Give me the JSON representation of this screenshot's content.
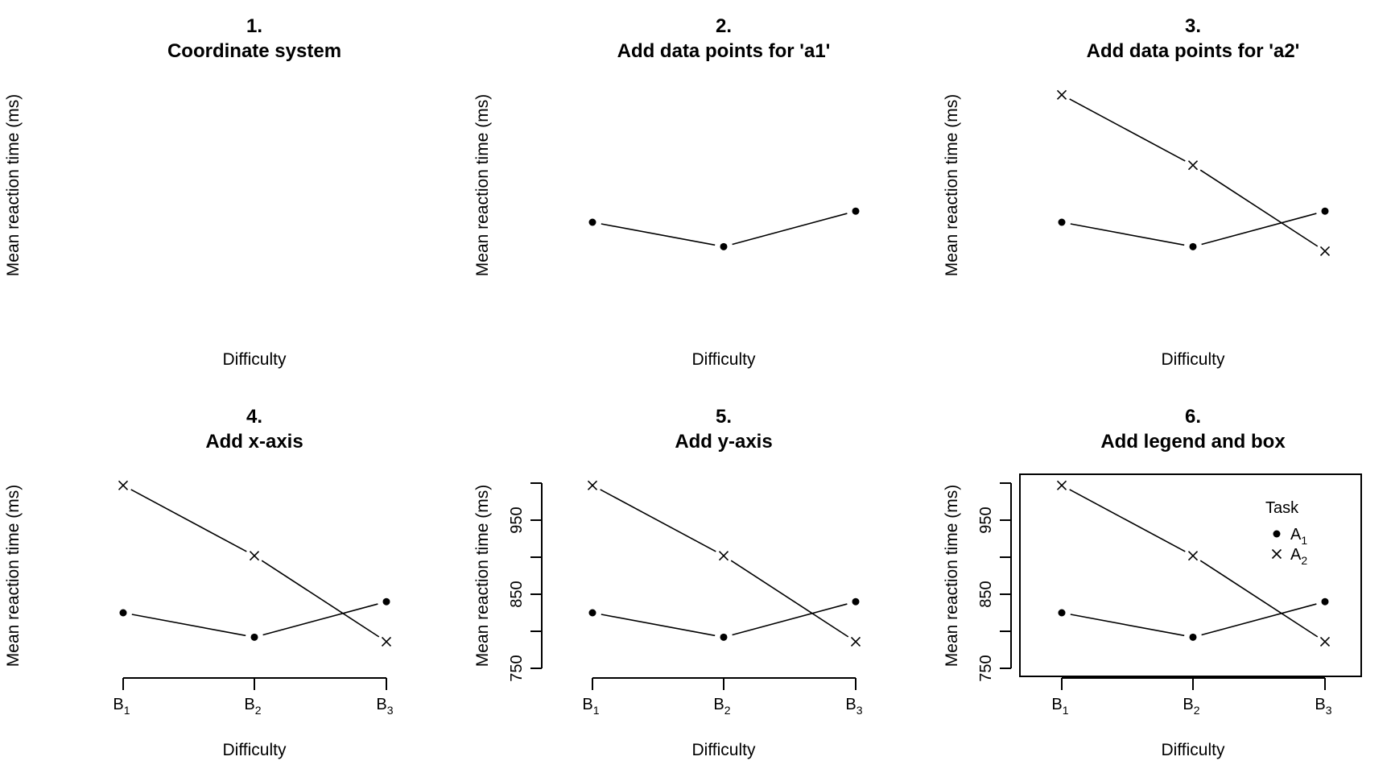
{
  "figure": {
    "panels": [
      {
        "number": "1.",
        "title": "Coordinate system",
        "show_a1": false,
        "show_a2": false,
        "show_xaxis": false,
        "show_yaxis": false,
        "show_legend": false,
        "show_box": false
      },
      {
        "number": "2.",
        "title": "Add data points for 'a1'",
        "show_a1": true,
        "show_a2": false,
        "show_xaxis": false,
        "show_yaxis": false,
        "show_legend": false,
        "show_box": false
      },
      {
        "number": "3.",
        "title": "Add data points for 'a2'",
        "show_a1": true,
        "show_a2": true,
        "show_xaxis": false,
        "show_yaxis": false,
        "show_legend": false,
        "show_box": false
      },
      {
        "number": "4.",
        "title": "Add x-axis",
        "show_a1": true,
        "show_a2": true,
        "show_xaxis": true,
        "show_yaxis": false,
        "show_legend": false,
        "show_box": false
      },
      {
        "number": "5.",
        "title": "Add y-axis",
        "show_a1": true,
        "show_a2": true,
        "show_xaxis": true,
        "show_yaxis": true,
        "show_legend": false,
        "show_box": false
      },
      {
        "number": "6.",
        "title": "Add legend and box",
        "show_a1": true,
        "show_a2": true,
        "show_xaxis": true,
        "show_yaxis": true,
        "show_legend": true,
        "show_box": true
      }
    ]
  },
  "chart_data": {
    "type": "line",
    "xlabel": "Difficulty",
    "ylabel": "Mean reaction time (ms)",
    "categories": [
      {
        "base": "B",
        "sub": "1"
      },
      {
        "base": "B",
        "sub": "2"
      },
      {
        "base": "B",
        "sub": "3"
      }
    ],
    "series": [
      {
        "name": "a1",
        "legend_base": "A",
        "legend_sub": "1",
        "marker": "filled-circle",
        "values": [
          825,
          792,
          840
        ]
      },
      {
        "name": "a2",
        "legend_base": "A",
        "legend_sub": "2",
        "marker": "cross",
        "values": [
          997,
          902,
          786
        ]
      }
    ],
    "ylim": [
      750,
      1000
    ],
    "yticks": [
      750,
      850,
      950
    ],
    "yminor_ticks": [
      800,
      900,
      1000
    ],
    "legend_title": "Task",
    "legend_position": "top-right"
  }
}
